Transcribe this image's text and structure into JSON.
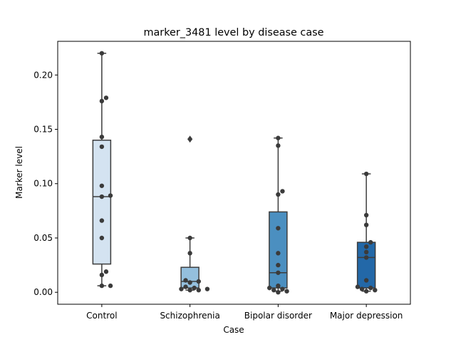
{
  "chart_data": {
    "type": "box",
    "title": "marker_3481 level by disease case",
    "xlabel": "Case",
    "ylabel": "Marker level",
    "ylim": [
      -0.011,
      0.231
    ],
    "yticks": [
      0.0,
      0.05,
      0.1,
      0.15,
      0.2
    ],
    "ytick_labels": [
      "0.00",
      "0.05",
      "0.10",
      "0.15",
      "0.20"
    ],
    "grid": false,
    "categories": [
      "Control",
      "Schizophrenia",
      "Bipolar disorder",
      "Major depression"
    ],
    "colors": [
      "#d4e3f1",
      "#94bfdd",
      "#4b8fc0",
      "#2368a8"
    ],
    "boxes": [
      {
        "q1": 0.026,
        "median": 0.088,
        "q3": 0.14,
        "whisker_low": 0.006,
        "whisker_high": 0.22,
        "outliers": []
      },
      {
        "q1": 0.004,
        "median": 0.01,
        "q3": 0.023,
        "whisker_low": 0.002,
        "whisker_high": 0.05,
        "outliers": [
          0.141
        ]
      },
      {
        "q1": 0.004,
        "median": 0.018,
        "q3": 0.074,
        "whisker_low": 0.001,
        "whisker_high": 0.142,
        "outliers": []
      },
      {
        "q1": 0.004,
        "median": 0.032,
        "q3": 0.046,
        "whisker_low": 0.001,
        "whisker_high": 0.109,
        "outliers": []
      }
    ],
    "points": [
      [
        0.22,
        0.179,
        0.176,
        0.143,
        0.134,
        0.098,
        0.089,
        0.088,
        0.066,
        0.05,
        0.019,
        0.016,
        0.006,
        0.006
      ],
      [
        0.05,
        0.036,
        0.011,
        0.01,
        0.009,
        0.005,
        0.004,
        0.003,
        0.003,
        0.002,
        0.002
      ],
      [
        0.142,
        0.135,
        0.093,
        0.09,
        0.059,
        0.036,
        0.025,
        0.018,
        0.006,
        0.004,
        0.003,
        0.002,
        0.001,
        0.0
      ],
      [
        0.109,
        0.071,
        0.062,
        0.046,
        0.042,
        0.037,
        0.032,
        0.011,
        0.005,
        0.004,
        0.003,
        0.002,
        0.001
      ]
    ]
  }
}
